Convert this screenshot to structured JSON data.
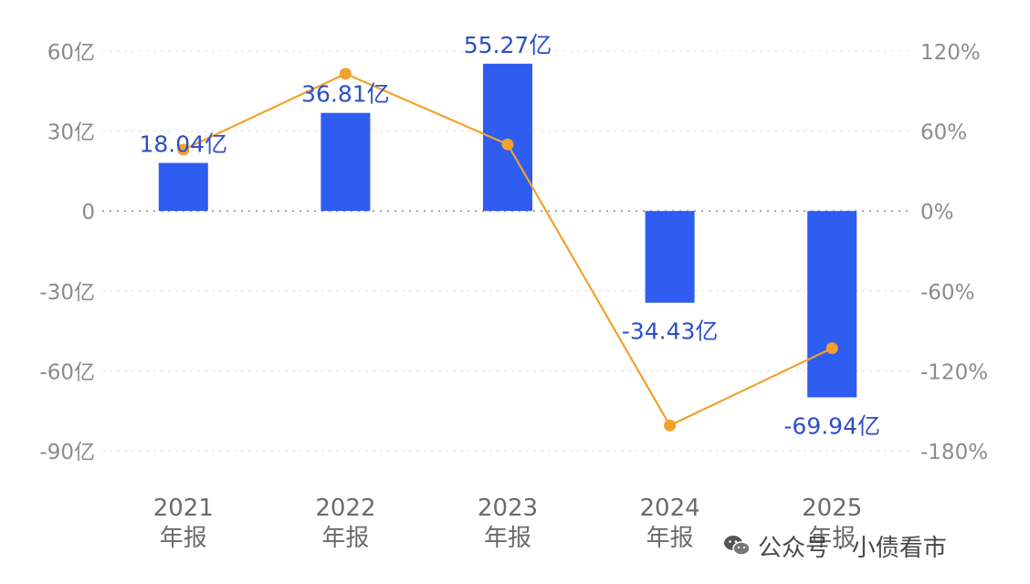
{
  "chart_data": {
    "type": "bar",
    "categories": [
      "2021\n年报",
      "2022\n年报",
      "2023\n年报",
      "2024\n年报",
      "2025\n年报"
    ],
    "series": [
      {
        "values": [
          18.04,
          36.81,
          55.27,
          -34.43,
          -69.94
        ],
        "color": "#2f5cf1",
        "axis": "left"
      },
      {
        "values": [
          46,
          103,
          50,
          -161,
          -103
        ],
        "color": "#f2a12e",
        "axis": "right",
        "type": "line"
      }
    ],
    "data_labels": [
      "18.04亿",
      "36.81亿",
      "55.27亿",
      "-34.43亿",
      "-69.94亿"
    ],
    "y_left": {
      "ticks": [
        "60亿",
        "30亿",
        "0",
        "-30亿",
        "-60亿",
        "-90亿"
      ],
      "tick_values": [
        60,
        30,
        0,
        -30,
        -60,
        -90
      ],
      "ylim": [
        -90,
        60
      ]
    },
    "y_right": {
      "ticks": [
        "120%",
        "60%",
        "0%",
        "-60%",
        "-120%",
        "-180%"
      ],
      "tick_values": [
        120,
        60,
        0,
        -60,
        -120,
        -180
      ],
      "ylim": [
        -180,
        120
      ]
    },
    "grid": true
  },
  "watermark": {
    "text": "公众号 · 小债看市",
    "icon": "wechat-icon"
  }
}
